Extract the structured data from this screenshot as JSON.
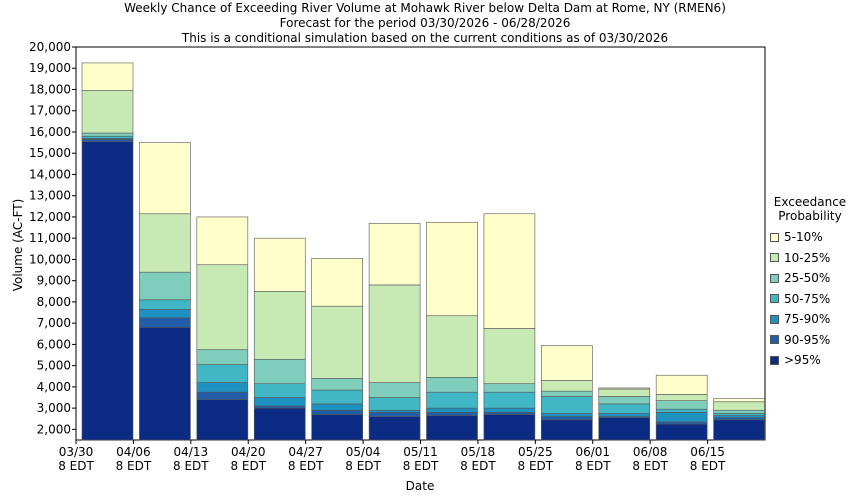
{
  "titles": [
    "Weekly Chance of Exceeding River Volume at Mohawk River below Delta Dam at Rome, NY (RMEN6)",
    "Forecast for the period 03/30/2026 - 06/28/2026",
    "This is a conditional simulation based on the current conditions as of 03/30/2026"
  ],
  "chart_data": {
    "type": "bar",
    "stacked": true,
    "xlabel": "Date",
    "ylabel": "Volume (AC-FT)",
    "ylim": [
      1500,
      20000
    ],
    "yticks": [
      2000,
      3000,
      4000,
      5000,
      6000,
      7000,
      8000,
      9000,
      10000,
      11000,
      12000,
      13000,
      14000,
      15000,
      16000,
      17000,
      18000,
      19000,
      20000
    ],
    "ytick_labels": [
      "2,000",
      "3,000",
      "4,000",
      "5,000",
      "6,000",
      "7,000",
      "8,000",
      "9,000",
      "10,000",
      "11,000",
      "12,000",
      "13,000",
      "14,000",
      "15,000",
      "16,000",
      "17,000",
      "18,000",
      "19,000",
      "20,000"
    ],
    "xtick_labels": [
      [
        "03/30",
        "8 EDT"
      ],
      [
        "04/06",
        "8 EDT"
      ],
      [
        "04/13",
        "8 EDT"
      ],
      [
        "04/20",
        "8 EDT"
      ],
      [
        "04/27",
        "8 EDT"
      ],
      [
        "05/04",
        "8 EDT"
      ],
      [
        "05/11",
        "8 EDT"
      ],
      [
        "05/18",
        "8 EDT"
      ],
      [
        "05/25",
        "8 EDT"
      ],
      [
        "06/01",
        "8 EDT"
      ],
      [
        "06/08",
        "8 EDT"
      ],
      [
        "06/15",
        "8 EDT"
      ]
    ],
    "legend": {
      "title": [
        "Exceedance",
        "Probability"
      ],
      "placement": "right"
    },
    "series": [
      {
        "name": "5-10%",
        "color": "#ffffcc"
      },
      {
        "name": "10-25%",
        "color": "#c7e9b4"
      },
      {
        "name": "25-50%",
        "color": "#7fcdbb"
      },
      {
        "name": "50-75%",
        "color": "#41b6c4"
      },
      {
        "name": "75-90%",
        "color": "#1d91c0"
      },
      {
        "name": "90-95%",
        "color": "#225ea8"
      },
      {
        "name": ">95%",
        "color": "#0c2c84"
      }
    ],
    "bars": [
      {
        "bounds": [
          15550,
          15650,
          15700,
          15800,
          15950,
          17950,
          19250
        ]
      },
      {
        "bounds": [
          6800,
          7250,
          7650,
          8100,
          9400,
          12150,
          15500
        ]
      },
      {
        "bounds": [
          3400,
          3750,
          4200,
          5050,
          5750,
          9750,
          12000
        ]
      },
      {
        "bounds": [
          3000,
          3100,
          3500,
          4150,
          5300,
          8500,
          11000
        ]
      },
      {
        "bounds": [
          2700,
          2900,
          3200,
          3850,
          4400,
          7800,
          10050
        ]
      },
      {
        "bounds": [
          2600,
          2800,
          2900,
          3500,
          4200,
          8800,
          11700
        ]
      },
      {
        "bounds": [
          2650,
          2800,
          3000,
          3750,
          4450,
          7350,
          11750
        ]
      },
      {
        "bounds": [
          2700,
          2800,
          3000,
          3750,
          4150,
          6750,
          12150
        ]
      },
      {
        "bounds": [
          2450,
          2600,
          2750,
          3550,
          3800,
          4300,
          5950
        ]
      },
      {
        "bounds": [
          2550,
          2600,
          2750,
          3200,
          3550,
          3900,
          3950
        ]
      },
      {
        "bounds": [
          2250,
          2350,
          2800,
          2950,
          3350,
          3650,
          4550
        ]
      },
      {
        "bounds": [
          2450,
          2550,
          2650,
          2750,
          2900,
          3300,
          3450
        ]
      }
    ]
  }
}
